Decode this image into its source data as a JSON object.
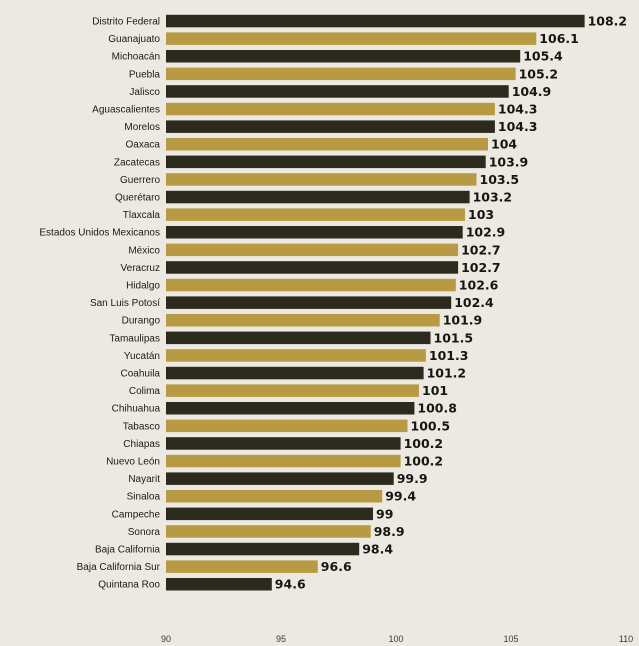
{
  "chart_data": {
    "type": "bar",
    "orientation": "horizontal",
    "categories": [
      "Distrito Federal",
      "Guanajuato",
      "Michoacán",
      "Puebla",
      "Jalisco",
      "Aguascalientes",
      "Morelos",
      "Oaxaca",
      "Zacatecas",
      "Guerrero",
      "Querétaro",
      "Tlaxcala",
      "Estados Unidos Mexicanos",
      "México",
      "Veracruz",
      "Hidalgo",
      "San Luis Potosí",
      "Durango",
      "Tamaulipas",
      "Yucatán",
      "Coahuila",
      "Colima",
      "Chihuahua",
      "Tabasco",
      "Chiapas",
      "Nuevo León",
      "Nayarit",
      "Sinaloa",
      "Campeche",
      "Sonora",
      "Baja California",
      "Baja California Sur",
      "Quintana Roo"
    ],
    "values": [
      108.2,
      106.1,
      105.4,
      105.2,
      104.9,
      104.3,
      104.3,
      104,
      103.9,
      103.5,
      103.2,
      103,
      102.9,
      102.7,
      102.7,
      102.6,
      102.4,
      101.9,
      101.5,
      101.3,
      101.2,
      101,
      100.8,
      100.5,
      100.2,
      100.2,
      99.9,
      99.4,
      99,
      98.9,
      98.4,
      96.6,
      94.6
    ],
    "value_labels": [
      "108.2",
      "106.1",
      "105.4",
      "105.2",
      "104.9",
      "104.3",
      "104.3",
      "104",
      "103.9",
      "103.5",
      "103.2",
      "103",
      "102.9",
      "102.7",
      "102.7",
      "102.6",
      "102.4",
      "101.9",
      "101.5",
      "101.3",
      "101.2",
      "101",
      "100.8",
      "100.5",
      "100.2",
      "100.2",
      "99.9",
      "99.4",
      "99",
      "98.9",
      "98.4",
      "96.6",
      "94.6"
    ],
    "bar_colors": [
      "#2b2a1d",
      "#b99a44"
    ],
    "xlim": [
      90,
      110
    ],
    "xticks": [
      "90",
      "95",
      "100",
      "105",
      "110"
    ],
    "title": "",
    "xlabel": "",
    "ylabel": "",
    "grid": false,
    "legend": "none"
  }
}
